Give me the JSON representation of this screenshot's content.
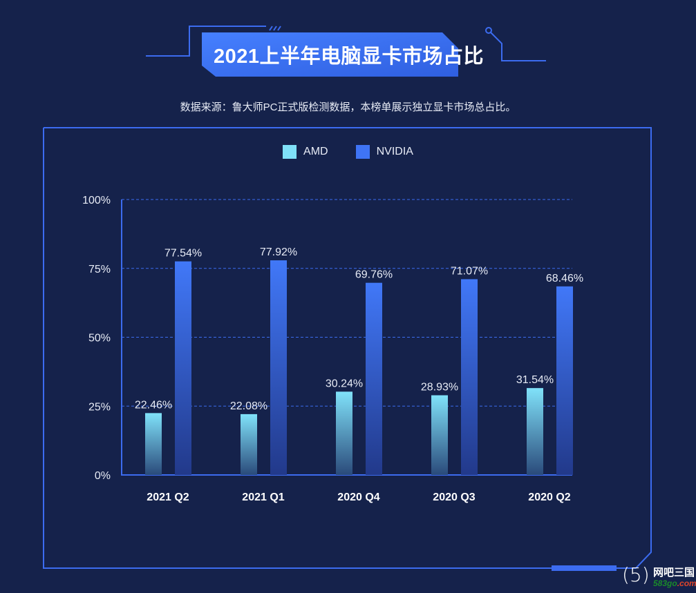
{
  "title": "2021上半年电脑显卡市场占比",
  "subtitle": "数据来源：鲁大师PC正式版检测数据，本榜单展示独立显卡市场总占比。",
  "colors": {
    "background": "#15224b",
    "frame": "#3c6cf0",
    "amd": "#7fe0f8",
    "nvidia": "#3f74f5"
  },
  "logo": {
    "mark": "(5)",
    "name": "网吧三国",
    "domain_a": "583go",
    "domain_b": ".com"
  },
  "chart_data": {
    "type": "bar",
    "title": "2021上半年电脑显卡市场占比",
    "categories": [
      "2021 Q2",
      "2021 Q1",
      "2020 Q4",
      "2020 Q3",
      "2020 Q2"
    ],
    "series": [
      {
        "name": "AMD",
        "values": [
          22.46,
          22.08,
          30.24,
          28.93,
          31.54
        ],
        "labels": [
          "22.46%",
          "22.08%",
          "30.24%",
          "28.93%",
          "31.54%"
        ]
      },
      {
        "name": "NVIDIA",
        "values": [
          77.54,
          77.92,
          69.76,
          71.07,
          68.46
        ],
        "labels": [
          "77.54%",
          "77.92%",
          "69.76%",
          "71.07%",
          "68.46%"
        ]
      }
    ],
    "yticks": [
      0,
      25,
      50,
      75,
      100
    ],
    "ytick_labels": [
      "0%",
      "25%",
      "50%",
      "75%",
      "100%"
    ],
    "ylim": [
      0,
      100
    ],
    "grid": true,
    "legend": "top-center",
    "xlabel": "",
    "ylabel": ""
  }
}
